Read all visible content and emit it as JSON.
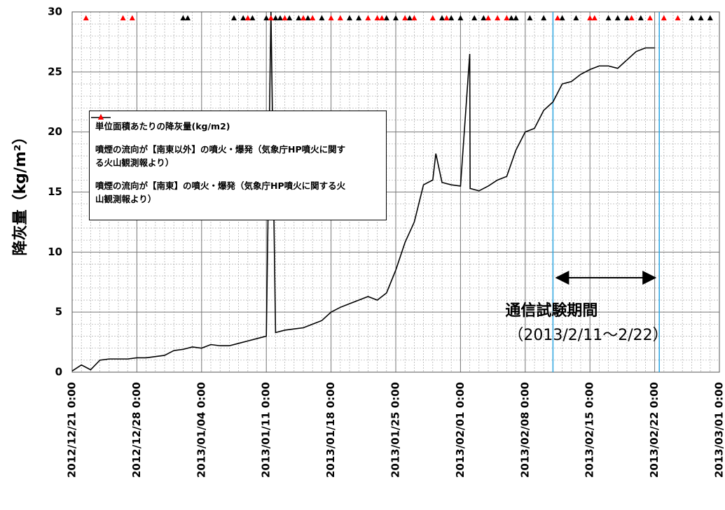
{
  "chart_data": {
    "type": "line",
    "ylabel": "降灰量（kg/m²）",
    "xlim": [
      "2012/12/21 0:00",
      "2013/03/01 0:00"
    ],
    "xticks": [
      "2012/12/21 0:00",
      "2012/12/28 0:00",
      "2013/01/04 0:00",
      "2013/01/11 0:00",
      "2013/01/18 0:00",
      "2013/01/25 0:00",
      "2013/02/01 0:00",
      "2013/02/08 0:00",
      "2013/02/15 0:00",
      "2013/02/22 0:00",
      "2013/03/01 0:00"
    ],
    "ylim": [
      0,
      30
    ],
    "yticks": [
      0,
      5,
      10,
      15,
      20,
      25,
      30
    ],
    "grid": true,
    "minor_grid": true,
    "annotations": [
      {
        "text": "通信試験期間",
        "x": "2013/02/11 0:00"
      },
      {
        "text": "（2013/2/11～2/22）",
        "x": "2013/02/11 0:00"
      }
    ],
    "period": [
      "2013/02/11 0:00",
      "2013/02/22 12:00"
    ],
    "period_color": "#29a3e0",
    "series": [
      {
        "name": "単位面積あたりの降灰量(kg/m2)",
        "color": "#000000",
        "marker": "line",
        "x": [
          "2012/12/21 0:00",
          "2012/12/22 0:00",
          "2012/12/23 0:00",
          "2012/12/24 0:00",
          "2012/12/25 0:00",
          "2012/12/26 0:00",
          "2012/12/27 0:00",
          "2012/12/28 0:00",
          "2012/12/29 0:00",
          "2012/12/30 0:00",
          "2012/12/31 0:00",
          "2013/01/01 0:00",
          "2013/01/02 0:00",
          "2013/01/03 0:00",
          "2013/01/04 0:00",
          "2013/01/05 0:00",
          "2013/01/06 0:00",
          "2013/01/07 0:00",
          "2013/01/08 0:00",
          "2013/01/09 0:00",
          "2013/01/10 0:00",
          "2013/01/11 0:00",
          "2013/01/11 12:00",
          "2013/01/12 0:00",
          "2013/01/13 0:00",
          "2013/01/14 0:00",
          "2013/01/15 0:00",
          "2013/01/16 0:00",
          "2013/01/17 0:00",
          "2013/01/18 0:00",
          "2013/01/19 0:00",
          "2013/01/20 0:00",
          "2013/01/21 0:00",
          "2013/01/22 0:00",
          "2013/01/23 0:00",
          "2013/01/24 0:00",
          "2013/01/25 0:00",
          "2013/01/26 0:00",
          "2013/01/27 0:00",
          "2013/01/28 0:00",
          "2013/01/29 0:00",
          "2013/01/29 8:00",
          "2013/01/30 0:00",
          "2013/01/31 0:00",
          "2013/02/01 0:00",
          "2013/02/02 0:00",
          "2013/02/02 1:00",
          "2013/02/03 0:00",
          "2013/02/04 0:00",
          "2013/02/05 0:00",
          "2013/02/06 0:00",
          "2013/02/07 0:00",
          "2013/02/08 0:00",
          "2013/02/09 0:00",
          "2013/02/10 0:00",
          "2013/02/11 0:00",
          "2013/02/12 0:00",
          "2013/02/13 0:00",
          "2013/02/14 0:00",
          "2013/02/15 0:00",
          "2013/02/16 0:00",
          "2013/02/17 0:00",
          "2013/02/18 0:00",
          "2013/02/19 0:00",
          "2013/02/20 0:00",
          "2013/02/21 0:00",
          "2013/02/22 0:00"
        ],
        "values": [
          0.1,
          0.6,
          0.2,
          1.0,
          1.1,
          1.1,
          1.1,
          1.2,
          1.2,
          1.3,
          1.4,
          1.8,
          1.9,
          2.1,
          2.0,
          2.3,
          2.2,
          2.2,
          2.4,
          2.6,
          2.8,
          3.0,
          30,
          3.3,
          3.5,
          3.6,
          3.7,
          4.0,
          4.3,
          5.0,
          5.4,
          5.7,
          6.0,
          6.3,
          6.0,
          6.6,
          8.5,
          10.8,
          12.5,
          15.6,
          16.0,
          18.2,
          15.8,
          15.6,
          15.5,
          26.5,
          15.3,
          15.1,
          15.5,
          16.0,
          16.3,
          18.5,
          20.0,
          20.3,
          21.8,
          22.5,
          24.0,
          24.2,
          24.8,
          25.2,
          25.5,
          25.5,
          25.3,
          26.0,
          26.7,
          27.0,
          27.0
        ]
      },
      {
        "name": "噴煙の流向が【南東以外】の噴火・爆発（気象庁HP噴火に関する火山観測報より）",
        "color": "#000000",
        "marker": "triangle",
        "x": [
          "2013/01/02 0:00",
          "2013/01/02 12:00",
          "2013/01/07 12:00",
          "2013/01/08 12:00",
          "2013/01/09 12:00",
          "2013/01/11 0:00",
          "2013/01/12 0:00",
          "2013/01/12 12:00",
          "2013/01/13 12:00",
          "2013/01/14 12:00",
          "2013/01/15 12:00",
          "2013/01/17 0:00",
          "2013/01/20 0:00",
          "2013/01/21 0:00",
          "2013/01/24 0:00",
          "2013/01/25 0:00",
          "2013/01/26 12:00",
          "2013/01/30 0:00",
          "2013/01/31 0:00",
          "2013/02/01 0:00",
          "2013/02/02 12:00",
          "2013/02/03 12:00",
          "2013/02/06 12:00",
          "2013/02/07 0:00",
          "2013/02/08 12:00",
          "2013/02/10 0:00",
          "2013/02/12 0:00",
          "2013/02/13 12:00",
          "2013/02/17 0:00",
          "2013/02/18 0:00",
          "2013/02/19 0:00",
          "2013/02/20 12:00",
          "2013/02/26 0:00",
          "2013/02/27 0:00",
          "2013/02/28 0:00"
        ],
        "values": [
          29.5,
          29.5,
          29.5,
          29.5,
          29.5,
          29.5,
          29.5,
          29.5,
          29.5,
          29.5,
          29.5,
          29.5,
          29.5,
          29.5,
          29.5,
          29.5,
          29.5,
          29.5,
          29.5,
          29.5,
          29.5,
          29.5,
          29.5,
          29.5,
          29.5,
          29.5,
          29.5,
          29.5,
          29.5,
          29.5,
          29.5,
          29.5,
          29.5,
          29.5,
          29.5
        ]
      },
      {
        "name": "噴煙の流向が【南東】の噴火・爆発（気象庁HP噴火に関する火山観測報より）",
        "color": "#ff0000",
        "marker": "triangle",
        "x": [
          "2012/12/22 12:00",
          "2012/12/26 12:00",
          "2012/12/27 12:00",
          "2013/01/09 0:00",
          "2013/01/11 12:00",
          "2013/01/13 0:00",
          "2013/01/15 0:00",
          "2013/01/16 0:00",
          "2013/01/18 0:00",
          "2013/01/19 0:00",
          "2013/01/22 0:00",
          "2013/01/23 0:00",
          "2013/01/23 12:00",
          "2013/01/26 0:00",
          "2013/01/27 0:00",
          "2013/01/29 0:00",
          "2013/01/30 12:00",
          "2013/02/04 0:00",
          "2013/02/05 0:00",
          "2013/02/06 0:00",
          "2013/02/11 12:00",
          "2013/02/15 0:00",
          "2013/02/15 12:00",
          "2013/02/19 12:00",
          "2013/02/21 12:00",
          "2013/02/23 0:00",
          "2013/02/24 12:00"
        ],
        "values": [
          29.5,
          29.5,
          29.5,
          29.5,
          29.5,
          29.5,
          29.5,
          29.5,
          29.5,
          29.5,
          29.5,
          29.5,
          29.5,
          29.5,
          29.5,
          29.5,
          29.5,
          29.5,
          29.5,
          29.5,
          29.5,
          29.5,
          29.5,
          29.5,
          29.5,
          29.5,
          29.5
        ]
      }
    ]
  }
}
